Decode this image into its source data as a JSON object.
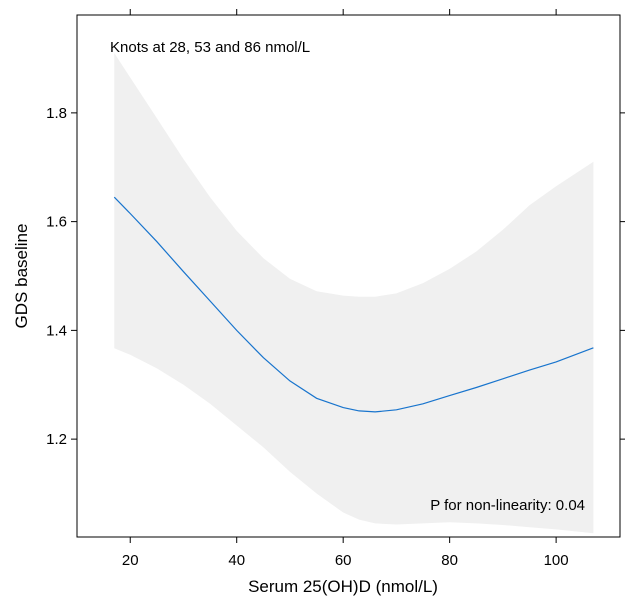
{
  "chart_data": {
    "type": "line",
    "title": "",
    "xlabel": "Serum 25(OH)D (nmol/L)",
    "ylabel": "GDS baseline",
    "xlim": [
      10,
      112
    ],
    "ylim": [
      1.02,
      1.98
    ],
    "x_ticks": [
      20,
      40,
      60,
      80,
      100
    ],
    "x_tick_labels": [
      "20",
      "40",
      "60",
      "80",
      "100"
    ],
    "y_ticks": [
      1.2,
      1.4,
      1.6,
      1.8
    ],
    "y_tick_labels": [
      "1.2",
      "1.4",
      "1.6",
      "1.8"
    ],
    "grid": false,
    "annotations": {
      "knots": "Knots at 28, 53 and 86 nmol/L",
      "p_value": "P for non-linearity: 0.04"
    },
    "colors": {
      "line": "#1874cd",
      "band": "#f0f0f0",
      "axis": "#000000"
    },
    "series": [
      {
        "type": "line",
        "x": [
          17,
          20,
          25,
          30,
          35,
          40,
          45,
          50,
          55,
          60,
          63,
          66,
          70,
          75,
          80,
          85,
          90,
          95,
          100,
          107
        ],
        "y": [
          1.645,
          1.615,
          1.563,
          1.508,
          1.454,
          1.4,
          1.35,
          1.307,
          1.275,
          1.258,
          1.252,
          1.25,
          1.254,
          1.265,
          1.28,
          1.295,
          1.311,
          1.327,
          1.342,
          1.368
        ]
      },
      {
        "type": "band",
        "x": [
          17,
          20,
          25,
          30,
          35,
          40,
          45,
          50,
          55,
          60,
          63,
          66,
          70,
          75,
          80,
          85,
          90,
          95,
          100,
          107
        ],
        "lower": [
          1.367,
          1.355,
          1.33,
          1.3,
          1.265,
          1.225,
          1.185,
          1.14,
          1.1,
          1.065,
          1.052,
          1.045,
          1.043,
          1.045,
          1.047,
          1.045,
          1.042,
          1.038,
          1.034,
          1.027
        ],
        "upper": [
          1.91,
          1.865,
          1.79,
          1.715,
          1.645,
          1.583,
          1.533,
          1.495,
          1.472,
          1.464,
          1.462,
          1.462,
          1.468,
          1.487,
          1.513,
          1.545,
          1.585,
          1.63,
          1.665,
          1.71
        ]
      }
    ]
  }
}
